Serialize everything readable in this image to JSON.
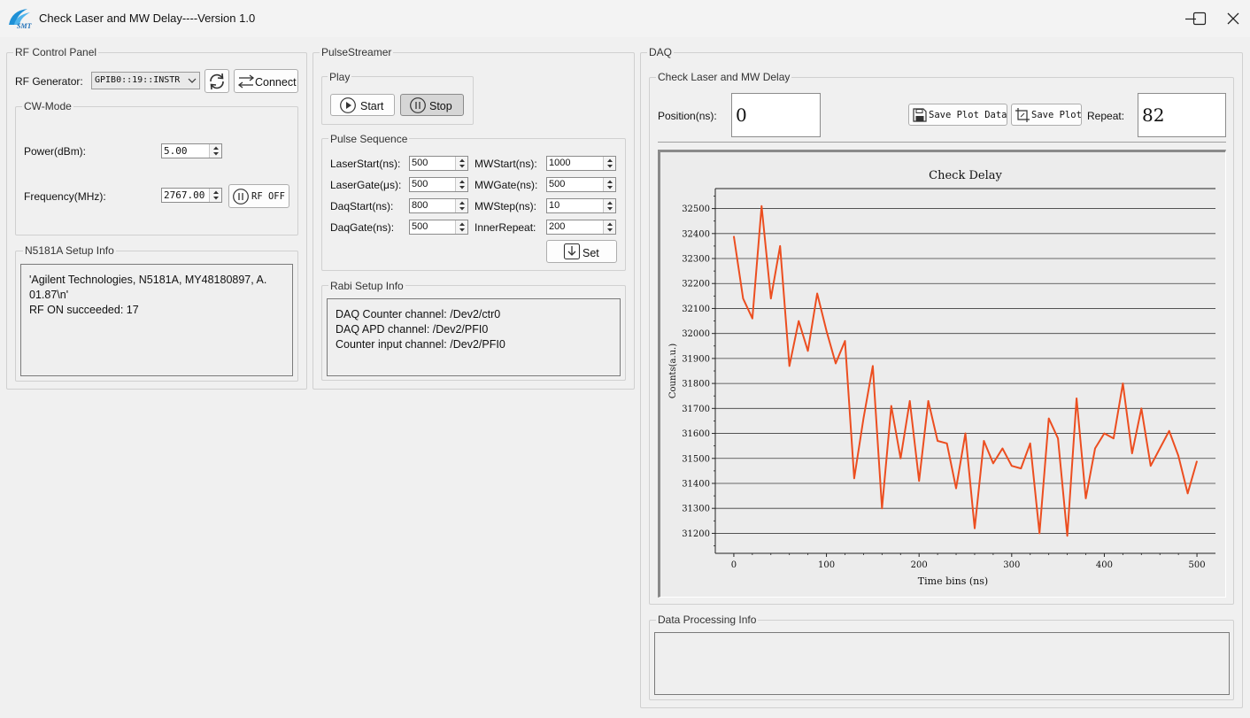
{
  "window": {
    "title": "Check Laser and MW Delay----Version 1.0",
    "logo_text": "SMT"
  },
  "rf_panel": {
    "title": "RF Control Panel",
    "generator_label": "RF Generator:",
    "generator_value": "GPIB0::19::INSTR",
    "connect_label": "Connect",
    "cw_title": "CW-Mode",
    "power_label": "Power(dBm):",
    "power_value": "5.00",
    "freq_label": "Frequency(MHz):",
    "freq_value": "2767.00",
    "rf_button_label": "RF OFF",
    "info_title": "N5181A Setup Info",
    "info_lines": [
      "'Agilent Technologies, N5181A, MY48180897, A.",
      "01.87\\n'",
      "RF ON succeeded: 17"
    ]
  },
  "pulse_streamer": {
    "title": "PulseStreamer",
    "play_title": "Play",
    "start_label": "Start",
    "stop_label": "Stop",
    "seq_title": "Pulse Sequence",
    "fields": [
      {
        "label": "LaserStart(ns):",
        "value": "500"
      },
      {
        "label": "LaserGate(μs):",
        "value": "500"
      },
      {
        "label": "DaqStart(ns):",
        "value": "800"
      },
      {
        "label": "DaqGate(ns):",
        "value": "500"
      },
      {
        "label": "MWStart(ns):",
        "value": "1000"
      },
      {
        "label": "MWGate(ns):",
        "value": "500"
      },
      {
        "label": "MWStep(ns):",
        "value": "10"
      },
      {
        "label": "InnerRepeat:",
        "value": "200"
      }
    ],
    "set_label": "Set",
    "rabi_title": "Rabi Setup Info",
    "rabi_lines": [
      "DAQ Counter channel: /Dev2/ctr0",
      "DAQ APD channel: /Dev2/PFI0",
      "Counter input channel: /Dev2/PFI0"
    ]
  },
  "daq": {
    "title": "DAQ",
    "check_title": "Check Laser and MW Delay",
    "position_label": "Position(ns):",
    "position_value": "0",
    "save_data_label": "Save Plot Data",
    "save_plot_label": "Save Plot",
    "repeat_label": "Repeat:",
    "repeat_value": "82",
    "processing_title": "Data Processing Info",
    "processing_text": ""
  },
  "colors": {
    "line": "#ec4e20",
    "window_bg": "#f0f0f0"
  },
  "chart_data": {
    "type": "line",
    "title": "Check Delay",
    "xlabel": "Time bins (ns)",
    "ylabel": "Counts(a.u.)",
    "xlim": [
      -20,
      520
    ],
    "ylim": [
      31120,
      32580
    ],
    "xticks": [
      0,
      100,
      200,
      300,
      400,
      500
    ],
    "yticks": [
      31200,
      31300,
      31400,
      31500,
      31600,
      31700,
      31800,
      31900,
      32000,
      32100,
      32200,
      32300,
      32400,
      32500
    ],
    "grid": "horizontal",
    "series": [
      {
        "x": [
          0,
          10,
          20,
          30,
          40,
          50,
          60,
          70,
          80,
          90,
          100,
          110,
          120,
          130,
          140,
          150,
          160,
          170,
          180,
          190,
          200,
          210,
          220,
          230,
          240,
          250,
          260,
          270,
          280,
          290,
          300,
          310,
          320,
          330,
          340,
          350,
          360,
          370,
          380,
          390,
          400,
          410,
          420,
          430,
          440,
          450,
          460,
          470,
          480,
          490,
          500
        ],
        "values": [
          32390,
          32140,
          32060,
          32510,
          32140,
          32350,
          31870,
          32050,
          31930,
          32160,
          32010,
          31880,
          31970,
          31420,
          31660,
          31870,
          31300,
          31710,
          31500,
          31730,
          31410,
          31730,
          31570,
          31560,
          31380,
          31600,
          31220,
          31570,
          31480,
          31540,
          31470,
          31460,
          31560,
          31200,
          31660,
          31580,
          31190,
          31740,
          31340,
          31540,
          31600,
          31580,
          31800,
          31520,
          31700,
          31470,
          31540,
          31610,
          31510,
          31360,
          31490
        ]
      }
    ]
  }
}
